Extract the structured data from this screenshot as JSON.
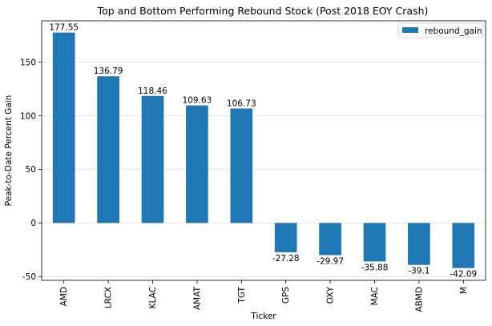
{
  "chart_data": {
    "type": "bar",
    "title": "Top and Bottom Performing Rebound Stock (Post 2018 EOY Crash)",
    "xlabel": "Ticker",
    "ylabel": "Peak-to-Date Percent Gain",
    "categories": [
      "AMD",
      "LRCX",
      "KLAC",
      "AMAT",
      "TGT",
      "GPS",
      "OXY",
      "MAC",
      "ABMD",
      "M"
    ],
    "series": [
      {
        "name": "rebound_gain",
        "values": [
          177.55,
          136.79,
          118.46,
          109.63,
          106.73,
          -27.28,
          -29.97,
          -35.88,
          -39.1,
          -42.09
        ],
        "color": "#1f77b4"
      }
    ],
    "data_labels": [
      "177.55",
      "136.79",
      "118.46",
      "109.63",
      "106.73",
      "-27.28",
      "-29.97",
      "-35.88",
      "-39.1",
      "-42.09"
    ],
    "yticks": [
      -50,
      0,
      50,
      100,
      150
    ],
    "ylim": [
      -53.5,
      188.5
    ],
    "grid": "horizontal",
    "legend_position": "top-right"
  }
}
